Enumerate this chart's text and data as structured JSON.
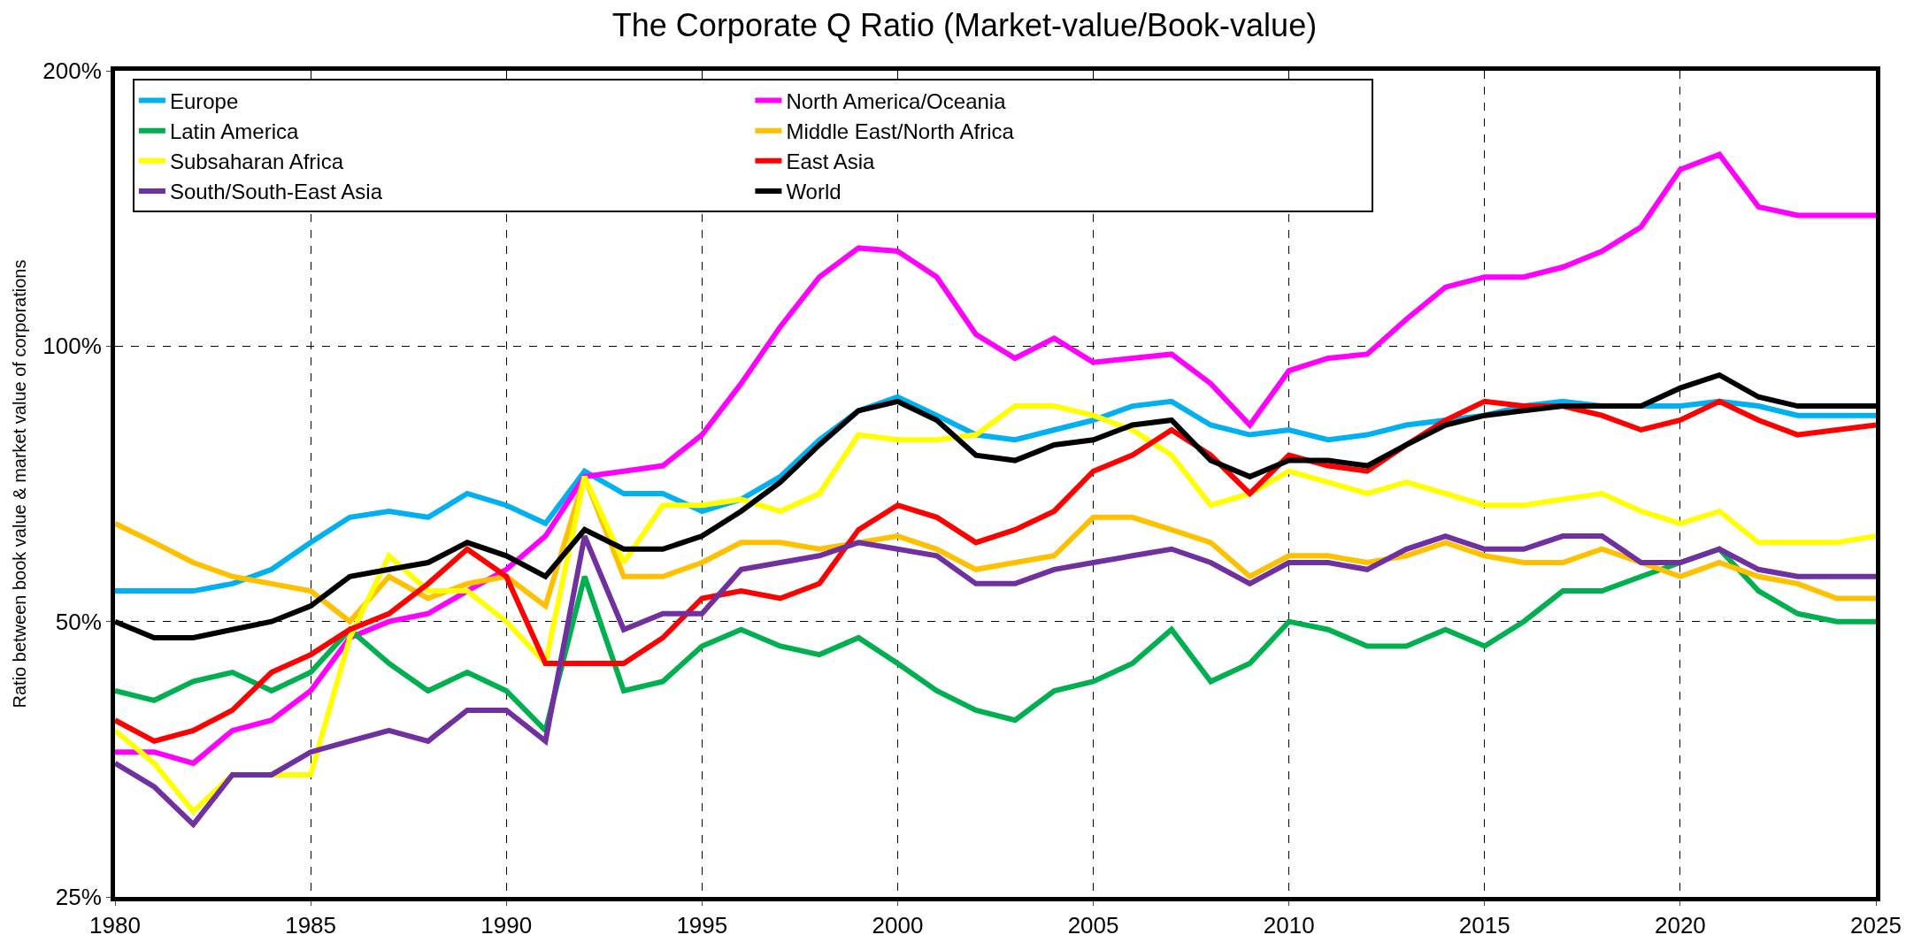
{
  "chart_data": {
    "type": "line",
    "title": "The Corporate Q Ratio (Market-value/Book-value)",
    "ylabel": "Ratio between book value & market value of corporations",
    "x": [
      1980,
      1981,
      1982,
      1983,
      1984,
      1985,
      1986,
      1987,
      1988,
      1989,
      1990,
      1991,
      1992,
      1993,
      1994,
      1995,
      1996,
      1997,
      1998,
      1999,
      2000,
      2001,
      2002,
      2003,
      2004,
      2005,
      2006,
      2007,
      2008,
      2009,
      2010,
      2011,
      2012,
      2013,
      2014,
      2015,
      2016,
      2017,
      2018,
      2019,
      2020,
      2021,
      2022,
      2023,
      2024,
      2025
    ],
    "series": [
      {
        "name": "Europe",
        "color": "#00b0f0",
        "values": [
          54,
          54,
          54,
          55,
          57,
          61,
          65,
          66,
          65,
          69,
          67,
          64,
          73,
          69,
          69,
          66,
          68,
          72,
          79,
          85,
          88,
          84,
          80,
          79,
          81,
          83,
          86,
          87,
          82,
          80,
          81,
          79,
          80,
          82,
          83,
          84,
          86,
          87,
          86,
          86,
          86,
          87,
          86,
          84,
          84,
          84
        ]
      },
      {
        "name": "North America/Oceania",
        "color": "#ff00ff",
        "values": [
          36,
          36,
          35,
          38,
          39,
          42,
          48,
          50,
          51,
          54,
          57,
          62,
          72,
          73,
          74,
          80,
          91,
          105,
          119,
          128,
          127,
          119,
          103,
          97,
          102,
          96,
          97,
          98,
          91,
          82,
          94,
          97,
          98,
          107,
          116,
          119,
          119,
          122,
          127,
          135,
          156,
          162,
          142,
          139,
          139,
          139
        ]
      },
      {
        "name": "Latin America",
        "color": "#00b050",
        "values": [
          42,
          41,
          43,
          44,
          42,
          44,
          49,
          45,
          42,
          44,
          42,
          38,
          56,
          42,
          43,
          47,
          49,
          47,
          46,
          48,
          45,
          42,
          40,
          39,
          42,
          43,
          45,
          49,
          43,
          45,
          50,
          49,
          47,
          47,
          49,
          47,
          50,
          54,
          54,
          56,
          58,
          60,
          54,
          51,
          50,
          50
        ]
      },
      {
        "name": "Middle East/North Africa",
        "color": "#ffc000",
        "values": [
          64,
          61,
          58,
          56,
          55,
          54,
          50,
          56,
          53,
          55,
          56,
          52,
          72,
          56,
          56,
          58,
          61,
          61,
          60,
          61,
          62,
          60,
          57,
          58,
          59,
          65,
          65,
          63,
          61,
          56,
          59,
          59,
          58,
          59,
          61,
          59,
          58,
          58,
          60,
          58,
          56,
          58,
          56,
          55,
          53,
          53
        ]
      },
      {
        "name": "Subsaharan Africa",
        "color": "#ffff00",
        "values": [
          38,
          35,
          31,
          34,
          34,
          34,
          48,
          59,
          54,
          54,
          50,
          45,
          72,
          58,
          67,
          67,
          68,
          66,
          69,
          80,
          79,
          79,
          80,
          86,
          86,
          84,
          81,
          76,
          67,
          69,
          73,
          71,
          69,
          71,
          69,
          67,
          67,
          68,
          69,
          66,
          64,
          66,
          61,
          61,
          61,
          62
        ]
      },
      {
        "name": "East Asia",
        "color": "#ff0000",
        "values": [
          39,
          37,
          38,
          40,
          44,
          46,
          49,
          51,
          55,
          60,
          56,
          45,
          45,
          45,
          48,
          53,
          54,
          53,
          55,
          63,
          67,
          65,
          61,
          63,
          66,
          73,
          76,
          81,
          76,
          69,
          76,
          74,
          73,
          78,
          83,
          87,
          86,
          86,
          84,
          81,
          83,
          87,
          83,
          80,
          81,
          82
        ]
      },
      {
        "name": "South/South-East Asia",
        "color": "#7030a0",
        "values": [
          35,
          33,
          30,
          34,
          34,
          36,
          37,
          38,
          37,
          40,
          40,
          37,
          62,
          49,
          51,
          51,
          57,
          58,
          59,
          61,
          60,
          59,
          55,
          55,
          57,
          58,
          59,
          60,
          58,
          55,
          58,
          58,
          57,
          60,
          62,
          60,
          60,
          62,
          62,
          58,
          58,
          60,
          57,
          56,
          56,
          56
        ]
      },
      {
        "name": "World",
        "color": "#000000",
        "values": [
          50,
          48,
          48,
          49,
          50,
          52,
          56,
          57,
          58,
          61,
          59,
          56,
          63,
          60,
          60,
          62,
          66,
          71,
          78,
          85,
          87,
          83,
          76,
          75,
          78,
          79,
          82,
          83,
          75,
          72,
          75,
          75,
          74,
          78,
          82,
          84,
          85,
          86,
          86,
          86,
          90,
          93,
          88,
          86,
          86,
          86
        ]
      }
    ],
    "xlim": [
      1980,
      2025
    ],
    "xticks": [
      1980,
      1985,
      1990,
      1995,
      2000,
      2005,
      2010,
      2015,
      2020,
      2025
    ],
    "ylim": [
      25,
      200
    ],
    "yticks": [
      {
        "value": 25,
        "label": "25%"
      },
      {
        "value": 50,
        "label": "50%"
      },
      {
        "value": 100,
        "label": "100%"
      },
      {
        "value": 200,
        "label": "200%"
      }
    ],
    "log": true,
    "grid": true,
    "legend": "top left",
    "marker": "none",
    "line_style": "solid"
  }
}
